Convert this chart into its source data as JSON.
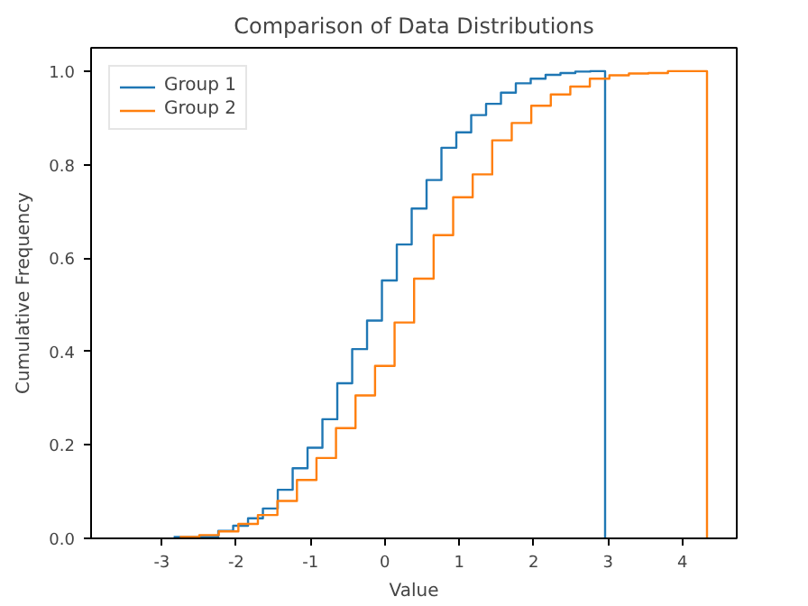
{
  "chart_data": {
    "type": "step",
    "title": "Comparison of Data Distributions",
    "xlabel": "Value",
    "ylabel": "Cumulative Frequency",
    "series": [
      {
        "name": "Group 1",
        "color": "#1f77b4",
        "x": [
          -2.84,
          -2.64,
          -2.44,
          -2.24,
          -2.04,
          -1.84,
          -1.64,
          -1.44,
          -1.24,
          -1.04,
          -0.84,
          -0.64,
          -0.44,
          -0.24,
          -0.04,
          0.16,
          0.36,
          0.56,
          0.76,
          0.96,
          1.16,
          1.36,
          1.56,
          1.76,
          1.96,
          2.16,
          2.36,
          2.56,
          2.76,
          2.96
        ],
        "values": [
          0.003,
          0.003,
          0.003,
          0.016,
          0.027,
          0.043,
          0.064,
          0.104,
          0.15,
          0.194,
          0.255,
          0.332,
          0.405,
          0.466,
          0.552,
          0.629,
          0.706,
          0.767,
          0.836,
          0.869,
          0.906,
          0.93,
          0.954,
          0.974,
          0.984,
          0.992,
          0.996,
          0.999,
          1.0,
          0
        ]
      },
      {
        "name": "Group 2",
        "color": "#ff7f0e",
        "x": [
          -2.7575,
          -2.495,
          -2.2325,
          -1.97,
          -1.7075,
          -1.445,
          -1.1825,
          -0.92,
          -0.6575,
          -0.395,
          -0.1325,
          0.13,
          0.3925,
          0.655,
          0.9175,
          1.18,
          1.4425,
          1.705,
          1.9675,
          2.23,
          2.4925,
          2.755,
          3.0175,
          3.28,
          3.5425,
          3.805,
          4.0675,
          4.33
        ],
        "values": [
          0.003,
          0.007,
          0.015,
          0.031,
          0.05,
          0.08,
          0.125,
          0.172,
          0.236,
          0.306,
          0.369,
          0.462,
          0.556,
          0.649,
          0.73,
          0.779,
          0.852,
          0.889,
          0.926,
          0.95,
          0.967,
          0.984,
          0.991,
          0.995,
          0.996,
          1.0,
          1.0,
          0
        ]
      }
    ],
    "xlim": [
      -3.95,
      4.73
    ],
    "ylim": [
      0,
      1.05
    ],
    "xticks": [
      -3,
      -2,
      -1,
      0,
      1,
      2,
      3,
      4
    ],
    "yticks": [
      {
        "value": 0,
        "label": "0.0"
      },
      {
        "value": 0.2,
        "label": "0.2"
      },
      {
        "value": 0.4,
        "label": "0.4"
      },
      {
        "value": 0.6,
        "label": "0.6"
      },
      {
        "value": 0.8,
        "label": "0.8"
      },
      {
        "value": 1,
        "label": "1.0"
      }
    ],
    "legend": "top left",
    "grid": false
  }
}
